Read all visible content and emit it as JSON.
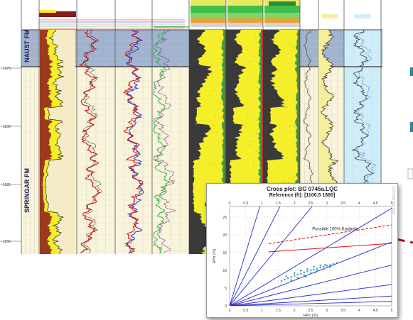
{
  "log_panel": {
    "depth_labels": [
      "1075",
      "1100",
      "1125",
      "1150"
    ],
    "zones": [
      {
        "name": "NAUST FM",
        "color": "#9fb3d0"
      },
      {
        "name": "SPRINGAR FM",
        "color": "#f5ecc7"
      }
    ],
    "colors": {
      "shale": "#3a3a3a",
      "sand": "#f5ee2a",
      "clay_fill": "#8b1a1a",
      "curve_red": "#d21f1f",
      "curve_blue": "#2232c8",
      "curve_green": "#22aa33",
      "panel_bg": "#f9f4dc",
      "header_green": "#3fbf4a",
      "track_cyan": "#cfeefb"
    }
  },
  "crossplot": {
    "title": "Cross plot: BG 0746a.LQC",
    "subtitle": "Reference (ft): [1100.5 1680]",
    "annotation": "Possible 100% Kaolinite",
    "x_label": "HPc (%)",
    "y_label": "HPo (%)",
    "x_ticks": [
      "0",
      "0.5",
      "1",
      "1.5",
      "2",
      "2.5",
      "3",
      "3.5",
      "4",
      "4.5",
      "5"
    ],
    "y_ticks": [
      "0",
      "5",
      "10",
      "15",
      "20",
      "25"
    ]
  },
  "chart_data": {
    "type": "scatter",
    "title": "Cross plot: BG 0746a.LQC",
    "subtitle": "Reference (ft): [1100.5 1680]",
    "xlabel": "HPc (%)",
    "ylabel": "HPo (%)",
    "xlim": [
      0,
      5
    ],
    "ylim": [
      0,
      28
    ],
    "grid": true,
    "points": [
      [
        1.6,
        7.0
      ],
      [
        1.7,
        7.4
      ],
      [
        1.8,
        7.8
      ],
      [
        1.9,
        8.1
      ],
      [
        2.0,
        8.5
      ],
      [
        2.1,
        8.8
      ],
      [
        2.2,
        9.0
      ],
      [
        2.3,
        9.4
      ],
      [
        2.4,
        9.7
      ],
      [
        2.5,
        10.0
      ],
      [
        2.6,
        10.2
      ],
      [
        2.7,
        10.5
      ],
      [
        2.8,
        10.8
      ],
      [
        2.9,
        11.0
      ],
      [
        3.0,
        11.3
      ],
      [
        3.1,
        11.5
      ],
      [
        3.2,
        11.8
      ],
      [
        1.9,
        7.2
      ],
      [
        2.1,
        7.9
      ],
      [
        2.3,
        8.6
      ],
      [
        2.5,
        9.2
      ],
      [
        2.7,
        9.9
      ],
      [
        2.9,
        10.3
      ],
      [
        3.1,
        10.9
      ],
      [
        2.0,
        9.2
      ],
      [
        2.2,
        9.9
      ],
      [
        2.4,
        10.4
      ],
      [
        2.6,
        11.0
      ],
      [
        2.8,
        11.4
      ],
      [
        1.75,
        8.3
      ],
      [
        2.35,
        8.2
      ],
      [
        2.65,
        9.4
      ],
      [
        2.95,
        11.6
      ],
      [
        3.3,
        12.1
      ]
    ],
    "lines": [
      {
        "type": "slope",
        "slope": 30,
        "color": "#2a2ad0"
      },
      {
        "type": "slope",
        "slope": 18,
        "color": "#2a2ad0"
      },
      {
        "type": "slope",
        "slope": 11,
        "color": "#2a2ad0"
      },
      {
        "type": "slope",
        "slope": 5.5,
        "color": "#2a2ad0"
      },
      {
        "type": "slope",
        "slope": 3.6,
        "color": "#2a2ad0"
      },
      {
        "type": "slope",
        "slope": 2.3,
        "color": "#2a2ad0"
      },
      {
        "type": "slope",
        "slope": 1.2,
        "color": "#2a2ad0"
      },
      {
        "type": "slope",
        "slope": 0.55,
        "color": "#2a2ad0"
      },
      {
        "type": "slope",
        "slope": 0.25,
        "color": "#2a2ad0"
      },
      {
        "type": "segment",
        "from": [
          1.2,
          17.5
        ],
        "to": [
          5,
          22.8
        ],
        "color": "#e01010",
        "dashed": true
      },
      {
        "type": "segment",
        "from": [
          1.2,
          15.2
        ],
        "to": [
          5,
          17.6
        ],
        "color": "#e01010",
        "dashed": false
      }
    ]
  }
}
